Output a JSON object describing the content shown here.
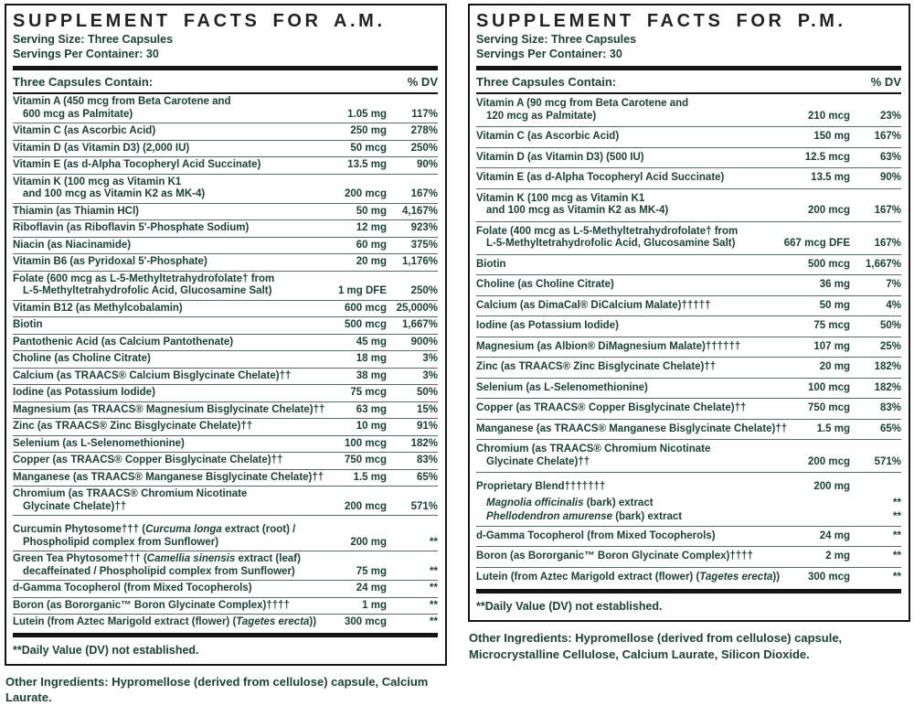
{
  "colors": {
    "text_green": "#1c4233",
    "title_ink": "#232323",
    "rule_black": "#141414",
    "row_separator": "#5b6b62",
    "background": "#ffffff"
  },
  "panels": [
    {
      "id": "am",
      "title": "SUPPLEMENT FACTS FOR A.M.",
      "serving_size": "Serving Size: Three Capsules",
      "servings_per_container": "Servings Per Container: 30",
      "columns": {
        "contain": "Three Capsules Contain:",
        "dv": "% DV"
      },
      "rows": [
        {
          "lines": [
            "Vitamin A (450 mcg from Beta Carotene and",
            "600 mcg as Palmitate)"
          ],
          "amount": "1.05 mg",
          "dv": "117%"
        },
        {
          "lines": [
            "Vitamin C (as Ascorbic Acid)"
          ],
          "amount": "250 mg",
          "dv": "278%"
        },
        {
          "lines": [
            "Vitamin D (as Vitamin D3) (2,000 IU)"
          ],
          "amount": "50 mcg",
          "dv": "250%"
        },
        {
          "lines": [
            "Vitamin E (as d-Alpha Tocopheryl Acid Succinate)"
          ],
          "amount": "13.5 mg",
          "dv": "90%"
        },
        {
          "lines": [
            "Vitamin K (100 mcg as Vitamin K1",
            "and 100 mcg as Vitamin K2 as MK-4)"
          ],
          "amount": "200 mcg",
          "dv": "167%"
        },
        {
          "lines": [
            "Thiamin (as Thiamin HCl)"
          ],
          "amount": "50 mg",
          "dv": "4,167%"
        },
        {
          "lines": [
            "Riboflavin (as Riboflavin 5'-Phosphate Sodium)"
          ],
          "amount": "12 mg",
          "dv": "923%"
        },
        {
          "lines": [
            "Niacin (as Niacinamide)"
          ],
          "amount": "60 mg",
          "dv": "375%"
        },
        {
          "lines": [
            "Vitamin B6 (as Pyridoxal 5'-Phosphate)"
          ],
          "amount": "20 mg",
          "dv": "1,176%"
        },
        {
          "lines": [
            "Folate (600 mcg as L-5-Methyltetrahydrofolate† from",
            "L-5-Methyltetrahydrofolic Acid, Glucosamine Salt)"
          ],
          "amount": "1 mg DFE",
          "dv": "250%"
        },
        {
          "lines": [
            "Vitamin B12 (as Methylcobalamin)"
          ],
          "amount": "600 mcg",
          "dv": "25,000%"
        },
        {
          "lines": [
            "Biotin"
          ],
          "amount": "500 mcg",
          "dv": "1,667%"
        },
        {
          "lines": [
            "Pantothenic Acid (as Calcium Pantothenate)"
          ],
          "amount": "45 mg",
          "dv": "900%"
        },
        {
          "lines": [
            "Choline (as Choline Citrate)"
          ],
          "amount": "18 mg",
          "dv": "3%"
        },
        {
          "lines": [
            "Calcium (as TRAACS® Calcium Bisglycinate Chelate)††"
          ],
          "amount": "38 mg",
          "dv": "3%"
        },
        {
          "lines": [
            "Iodine (as Potassium Iodide)"
          ],
          "amount": "75 mcg",
          "dv": "50%"
        },
        {
          "lines": [
            "Magnesium (as TRAACS® Magnesium Bisglycinate Chelate)††"
          ],
          "amount": "63 mg",
          "dv": "15%"
        },
        {
          "lines": [
            "Zinc (as TRAACS® Zinc Bisglycinate Chelate)††"
          ],
          "amount": "10 mg",
          "dv": "91%"
        },
        {
          "lines": [
            "Selenium (as L-Selenomethionine)"
          ],
          "amount": "100 mcg",
          "dv": "182%"
        },
        {
          "lines": [
            "Copper (as TRAACS® Copper Bisglycinate Chelate)††"
          ],
          "amount": "750 mcg",
          "dv": "83%"
        },
        {
          "lines": [
            "Manganese (as TRAACS® Manganese Bisglycinate Chelate)††"
          ],
          "amount": "1.5 mg",
          "dv": "65%"
        },
        {
          "lines": [
            "Chromium (as TRAACS® Chromium Nicotinate",
            "Glycinate Chelate)††"
          ],
          "amount": "200 mcg",
          "dv": "571%"
        },
        {
          "lines": [
            "Curcumin Phytosome††† (*Curcuma longa* extract (root) /",
            "Phospholipid complex from Sunflower)"
          ],
          "amount": "200 mg",
          "dv": "**",
          "gap": true
        },
        {
          "lines": [
            "Green Tea Phytosome††† (*Camellia sinensis* extract (leaf)",
            "decaffeinated / Phospholipid complex from Sunflower)"
          ],
          "amount": "75 mg",
          "dv": "**"
        },
        {
          "lines": [
            "d-Gamma Tocopherol (from Mixed Tocopherols)"
          ],
          "amount": "24 mg",
          "dv": "**"
        },
        {
          "lines": [
            "Boron (as Bororganic™ Boron Glycinate Complex)††††"
          ],
          "amount": "1 mg",
          "dv": "**"
        },
        {
          "lines": [
            "Lutein (from Aztec Marigold extract (flower) (*Tagetes erecta*))"
          ],
          "amount": "300 mcg",
          "dv": "**"
        }
      ],
      "footnote": "**Daily Value (DV) not established.",
      "other_ingredients": "Other Ingredients: Hypromellose (derived from cellulose) capsule, Calcium Laurate."
    },
    {
      "id": "pm",
      "title": "SUPPLEMENT FACTS FOR P.M.",
      "serving_size": "Serving Size: Three Capsules",
      "servings_per_container": "Servings Per Container: 30",
      "columns": {
        "contain": "Three Capsules Contain:",
        "dv": "% DV"
      },
      "rows": [
        {
          "lines": [
            "Vitamin A (90 mcg from Beta Carotene and",
            "120 mcg as Palmitate)"
          ],
          "amount": "210 mcg",
          "dv": "23%"
        },
        {
          "lines": [
            "Vitamin C (as Ascorbic Acid)"
          ],
          "amount": "150 mg",
          "dv": "167%"
        },
        {
          "lines": [
            "Vitamin D (as Vitamin D3) (500 IU)"
          ],
          "amount": "12.5 mcg",
          "dv": "63%"
        },
        {
          "lines": [
            "Vitamin E (as d-Alpha Tocopheryl Acid Succinate)"
          ],
          "amount": "13.5 mg",
          "dv": "90%"
        },
        {
          "lines": [
            "Vitamin K (100 mcg as Vitamin K1",
            "and 100 mcg as Vitamin K2 as MK-4)"
          ],
          "amount": "200 mcg",
          "dv": "167%"
        },
        {
          "lines": [
            "Folate (400 mcg as L-5-Methyltetrahydrofolate† from",
            "L-5-Methyltetrahydrofolic Acid, Glucosamine Salt)"
          ],
          "amount": "667 mcg DFE",
          "dv": "167%"
        },
        {
          "lines": [
            "Biotin"
          ],
          "amount": "500 mcg",
          "dv": "1,667%"
        },
        {
          "lines": [
            "Choline (as Choline Citrate)"
          ],
          "amount": "36 mg",
          "dv": "7%"
        },
        {
          "lines": [
            "Calcium (as DimaCal® DiCalcium Malate)†††††"
          ],
          "amount": "50 mg",
          "dv": "4%"
        },
        {
          "lines": [
            "Iodine (as Potassium Iodide)"
          ],
          "amount": "75 mcg",
          "dv": "50%"
        },
        {
          "lines": [
            "Magnesium (as Albion® DiMagnesium Malate)††††††"
          ],
          "amount": "107 mg",
          "dv": "25%"
        },
        {
          "lines": [
            "Zinc (as TRAACS® Zinc Bisglycinate Chelate)††"
          ],
          "amount": "20 mg",
          "dv": "182%"
        },
        {
          "lines": [
            "Selenium (as L-Selenomethionine)"
          ],
          "amount": "100 mcg",
          "dv": "182%"
        },
        {
          "lines": [
            "Copper (as TRAACS® Copper Bisglycinate Chelate)††"
          ],
          "amount": "750 mcg",
          "dv": "83%"
        },
        {
          "lines": [
            "Manganese (as TRAACS® Manganese Bisglycinate Chelate)††"
          ],
          "amount": "1.5 mg",
          "dv": "65%"
        },
        {
          "lines": [
            "Chromium (as TRAACS® Chromium Nicotinate",
            "Glycinate Chelate)††"
          ],
          "amount": "200 mcg",
          "dv": "571%"
        },
        {
          "lines": [
            "Proprietary Blend†††††††"
          ],
          "amount": "200 mg",
          "dv": "",
          "gap": true
        },
        {
          "lines": [
            "*Magnolia officinalis* (bark) extract"
          ],
          "amount": "",
          "dv": "**",
          "nosep": true,
          "sub": true
        },
        {
          "lines": [
            "*Phellodendron amurense* (bark) extract"
          ],
          "amount": "",
          "dv": "**",
          "nosep": true,
          "sub": true
        },
        {
          "lines": [
            "d-Gamma Tocopherol (from Mixed Tocopherols)"
          ],
          "amount": "24 mg",
          "dv": "**"
        },
        {
          "lines": [
            "Boron (as Bororganic™ Boron Glycinate Complex)††††"
          ],
          "amount": "2 mg",
          "dv": "**"
        },
        {
          "lines": [
            "Lutein (from Aztec Marigold extract (flower) (*Tagetes erecta*))"
          ],
          "amount": "300 mcg",
          "dv": "**"
        }
      ],
      "footnote": "**Daily Value (DV) not established.",
      "other_ingredients": "Other Ingredients: Hypromellose (derived from cellulose) capsule, Microcrystalline Cellulose, Calcium Laurate, Silicon Dioxide."
    }
  ]
}
